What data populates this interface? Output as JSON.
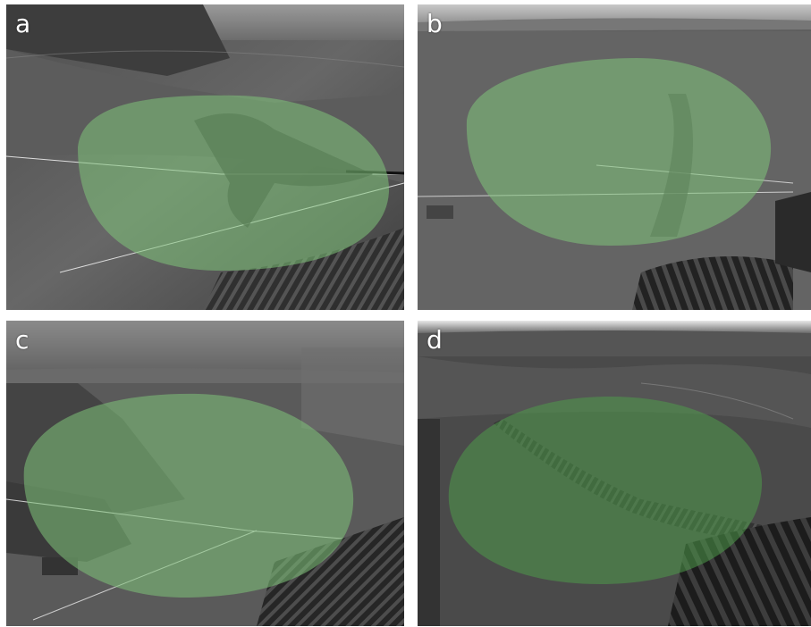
{
  "panels": [
    {
      "letter": "a"
    },
    {
      "letter": "b"
    },
    {
      "letter": "c"
    },
    {
      "letter": "d"
    }
  ],
  "colors": {
    "overlay_green": "#7fc47a",
    "background": "#ffffff"
  }
}
